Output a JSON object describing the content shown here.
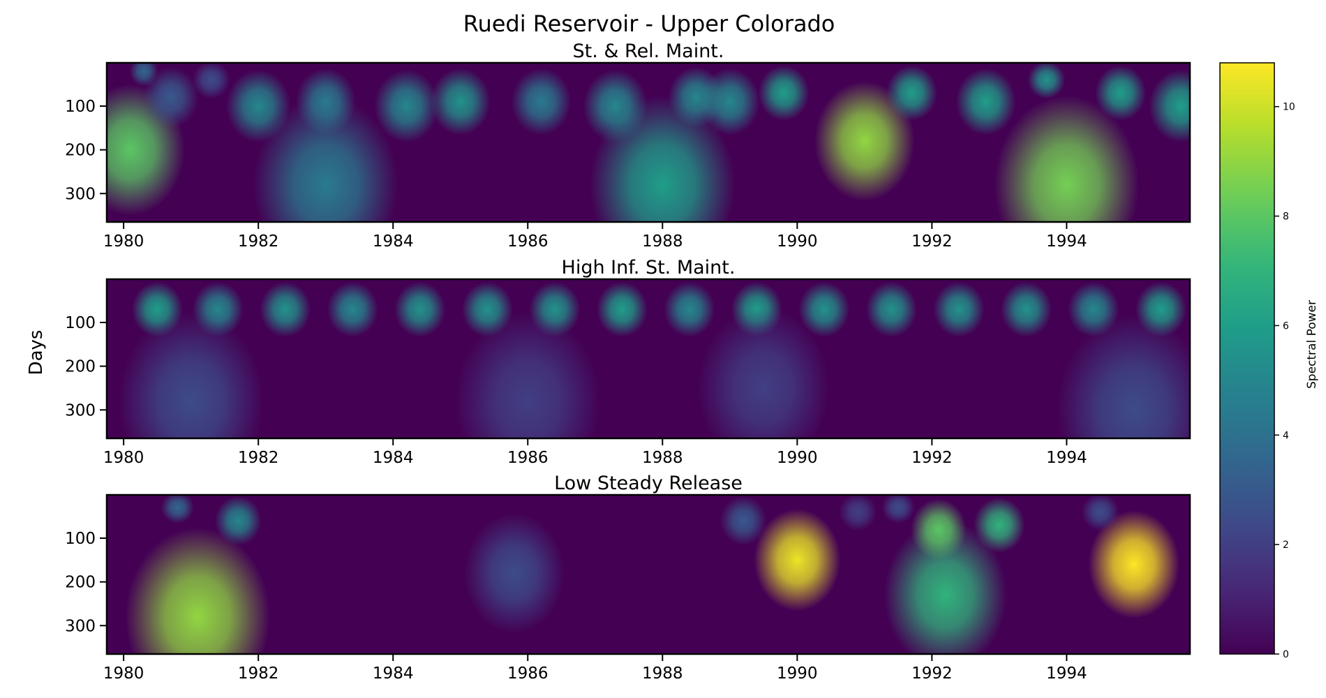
{
  "chart_data": {
    "type": "heatmap",
    "title": "Ruedi Reservoir - Upper Colorado",
    "ylabel": "Days",
    "xlim": [
      1979.75,
      1995.83
    ],
    "ylim": [
      365,
      1
    ],
    "x_ticks": [
      1980,
      1982,
      1984,
      1986,
      1988,
      1990,
      1992,
      1994
    ],
    "x_tick_labels": [
      "1980",
      "1982",
      "1984",
      "1986",
      "1988",
      "1990",
      "1992",
      "1994"
    ],
    "y_ticks": [
      100,
      200,
      300
    ],
    "y_tick_labels": [
      "100",
      "200",
      "300"
    ],
    "colormap": "viridis",
    "colors": {
      "background": "#440154",
      "axes": "#000000"
    },
    "colorbar": {
      "label": "Spectral Power",
      "range": [
        0,
        10.8
      ],
      "ticks": [
        0,
        2,
        4,
        6,
        8,
        10
      ],
      "tick_labels": [
        "0",
        "2",
        "4",
        "6",
        "8",
        "10"
      ]
    },
    "panels": [
      {
        "title": "St. & Rel. Maint.",
        "blobs": [
          {
            "year": 1980.1,
            "period": 200,
            "power": 8.0
          },
          {
            "year": 1980.3,
            "period": 20,
            "power": 3.5
          },
          {
            "year": 1980.7,
            "period": 80,
            "power": 3.0
          },
          {
            "year": 1981.3,
            "period": 40,
            "power": 2.5
          },
          {
            "year": 1982.0,
            "period": 100,
            "power": 5.0
          },
          {
            "year": 1983.0,
            "period": 280,
            "power": 4.5
          },
          {
            "year": 1983.0,
            "period": 90,
            "power": 4.5
          },
          {
            "year": 1984.2,
            "period": 100,
            "power": 5.0
          },
          {
            "year": 1985.0,
            "period": 90,
            "power": 5.5
          },
          {
            "year": 1986.2,
            "period": 90,
            "power": 4.5
          },
          {
            "year": 1987.3,
            "period": 100,
            "power": 5.0
          },
          {
            "year": 1988.0,
            "period": 280,
            "power": 6.0
          },
          {
            "year": 1988.5,
            "period": 80,
            "power": 5.0
          },
          {
            "year": 1989.0,
            "period": 90,
            "power": 5.0
          },
          {
            "year": 1989.8,
            "period": 70,
            "power": 6.0
          },
          {
            "year": 1991.0,
            "period": 180,
            "power": 9.0
          },
          {
            "year": 1991.7,
            "period": 70,
            "power": 6.0
          },
          {
            "year": 1992.8,
            "period": 90,
            "power": 6.0
          },
          {
            "year": 1993.7,
            "period": 40,
            "power": 5.5
          },
          {
            "year": 1994.0,
            "period": 280,
            "power": 8.5
          },
          {
            "year": 1994.8,
            "period": 70,
            "power": 6.0
          },
          {
            "year": 1995.7,
            "period": 100,
            "power": 6.0
          }
        ]
      },
      {
        "title": "High Inf. St. Maint.",
        "blobs": [
          {
            "year": 1980.5,
            "period": 70,
            "power": 6.0
          },
          {
            "year": 1981.4,
            "period": 70,
            "power": 5.0
          },
          {
            "year": 1982.4,
            "period": 70,
            "power": 5.5
          },
          {
            "year": 1983.4,
            "period": 70,
            "power": 5.0
          },
          {
            "year": 1984.4,
            "period": 70,
            "power": 5.5
          },
          {
            "year": 1985.4,
            "period": 70,
            "power": 5.5
          },
          {
            "year": 1986.4,
            "period": 70,
            "power": 5.5
          },
          {
            "year": 1987.4,
            "period": 70,
            "power": 6.0
          },
          {
            "year": 1988.4,
            "period": 70,
            "power": 5.0
          },
          {
            "year": 1989.4,
            "period": 70,
            "power": 6.0
          },
          {
            "year": 1990.4,
            "period": 70,
            "power": 5.5
          },
          {
            "year": 1991.4,
            "period": 70,
            "power": 5.5
          },
          {
            "year": 1992.4,
            "period": 70,
            "power": 5.5
          },
          {
            "year": 1993.4,
            "period": 70,
            "power": 5.5
          },
          {
            "year": 1994.4,
            "period": 70,
            "power": 5.0
          },
          {
            "year": 1995.4,
            "period": 70,
            "power": 6.0
          },
          {
            "year": 1981.0,
            "period": 280,
            "power": 2.5
          },
          {
            "year": 1986.0,
            "period": 280,
            "power": 2.0
          },
          {
            "year": 1989.5,
            "period": 250,
            "power": 2.0
          },
          {
            "year": 1995.0,
            "period": 300,
            "power": 2.5
          }
        ]
      },
      {
        "title": "Low Steady Release",
        "blobs": [
          {
            "year": 1981.1,
            "period": 280,
            "power": 9.0
          },
          {
            "year": 1981.7,
            "period": 60,
            "power": 5.0
          },
          {
            "year": 1980.8,
            "period": 30,
            "power": 3.5
          },
          {
            "year": 1985.8,
            "period": 180,
            "power": 2.5
          },
          {
            "year": 1989.2,
            "period": 60,
            "power": 3.0
          },
          {
            "year": 1990.0,
            "period": 150,
            "power": 10.5
          },
          {
            "year": 1992.2,
            "period": 230,
            "power": 7.0
          },
          {
            "year": 1992.1,
            "period": 80,
            "power": 8.0
          },
          {
            "year": 1993.0,
            "period": 70,
            "power": 7.0
          },
          {
            "year": 1995.0,
            "period": 160,
            "power": 10.8
          },
          {
            "year": 1994.5,
            "period": 40,
            "power": 2.5
          },
          {
            "year": 1990.9,
            "period": 40,
            "power": 2.0
          },
          {
            "year": 1991.5,
            "period": 30,
            "power": 2.5
          }
        ]
      }
    ]
  }
}
